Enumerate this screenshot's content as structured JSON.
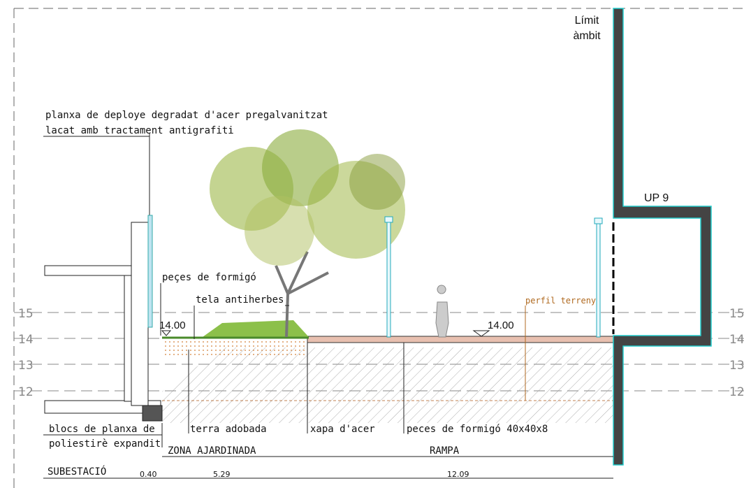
{
  "boundary": {
    "label": [
      "Límit",
      "àmbit"
    ],
    "zone": "UP 9"
  },
  "annotations": {
    "mesh": [
      "planxa de deploye degradat d'acer pregalvanitzat",
      "lacat amb tractament antigrafiti"
    ],
    "concrete_pieces": "peçes de formigó",
    "weed_fabric": "tela antiherbes",
    "terrain_profile": "perfil terreny",
    "insulation": [
      "blocs de planxa de",
      "poliestirè expandit"
    ],
    "soil": "terra adobada",
    "steel_sheet": "xapa d'acer",
    "paving": "peces de formigó 40x40x8"
  },
  "elevations": {
    "garden": "14.00",
    "ramp": "14.00"
  },
  "levels": {
    "left": [
      "15",
      "14",
      "13",
      "12"
    ],
    "right": [
      "15",
      "14",
      "13",
      "12"
    ]
  },
  "zones": [
    "ZONA AJARDINADA",
    "RAMPA"
  ],
  "dimensions": {
    "label": "SUBESTACIÓ",
    "values": [
      "0.40",
      "5.29",
      "12.09"
    ]
  }
}
